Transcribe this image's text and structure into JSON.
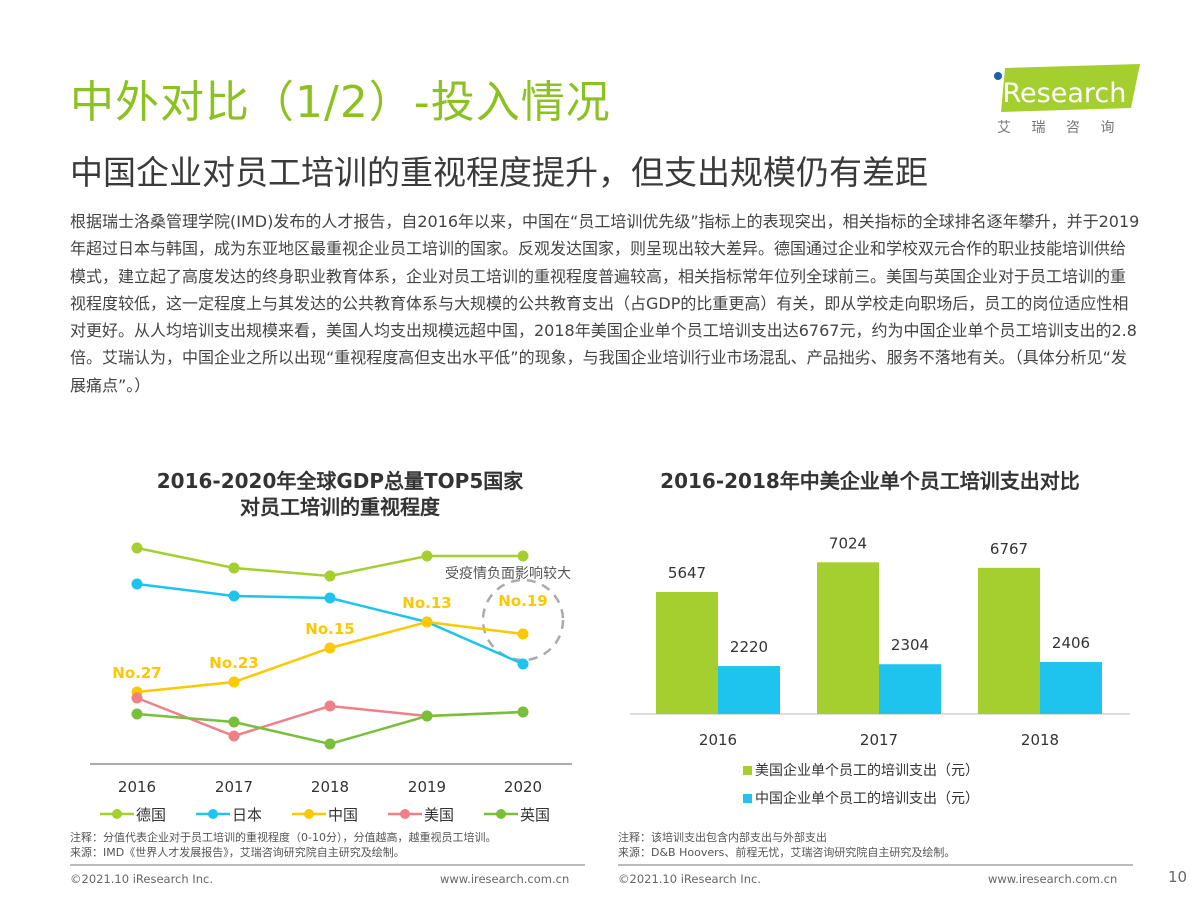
{
  "header": {
    "title": "中外对比（1/2）-投入情况",
    "subtitle": "中国企业对员工培训的重视程度提升，但支出规模仍有差距",
    "logo_text": "iResearch",
    "logo_cn": "艾 瑞 咨 询",
    "accent_color": "#8cc21f"
  },
  "paragraph": "根据瑞士洛桑管理学院(IMD)发布的人才报告，自2016年以来，中国在“员工培训优先级”指标上的表现突出，相关指标的全球排名逐年攀升，并于2019年超过日本与韩国，成为东亚地区最重视企业员工培训的国家。反观发达国家，则呈现出较大差异。德国通过企业和学校双元合作的职业技能培训供给模式，建立起了高度发达的终身职业教育体系，企业对员工培训的重视程度普遍较高，相关指标常年位列全球前三。美国与英国企业对于员工培训的重视程度较低，这一定程度上与其发达的公共教育体系与大规模的公共教育支出（占GDP的比重更高）有关，即从学校走向职场后，员工的岗位适应性相对更好。从人均培训支出规模来看，美国人均支出规模远超中国，2018年美国企业单个员工培训支出达6767元，约为中国企业单个员工培训支出的2.8倍。艾瑞认为，中国企业之所以出现“重视程度高但支出水平低”的现象，与我国企业培训行业市场混乱、产品拙劣、服务不落地有关。（具体分析见“发展痛点”。）",
  "chart_data": [
    {
      "type": "line",
      "title_line1": "2016-2020年全球GDP总量TOP5国家",
      "title_line2": "对员工培训的重视程度",
      "categories": [
        "2016",
        "2017",
        "2018",
        "2019",
        "2020"
      ],
      "ylim": [
        0,
        10
      ],
      "grid": false,
      "legend_placement": "bottom",
      "series": [
        {
          "name": "德国",
          "color": "#a5cf2e",
          "values": [
            6.3,
            5.8,
            5.6,
            6.1,
            6.1
          ]
        },
        {
          "name": "日本",
          "color": "#1ec4ee",
          "values": [
            5.4,
            5.1,
            5.05,
            4.45,
            3.4
          ]
        },
        {
          "name": "中国",
          "color": "#fcc800",
          "values": [
            2.7,
            2.95,
            3.8,
            4.45,
            4.15
          ],
          "labels": [
            "No.27",
            "No.23",
            "No.15",
            "No.13",
            "No.19"
          ]
        },
        {
          "name": "美国",
          "color": "#ee8088",
          "values": [
            2.55,
            1.6,
            2.35,
            2.1,
            2.2
          ]
        },
        {
          "name": "英国",
          "color": "#78c03a",
          "values": [
            2.15,
            1.95,
            1.4,
            2.1,
            2.2
          ]
        }
      ],
      "annotation": "受疫情负面影响较大",
      "note": "注释：分值代表企业对于员工培训的重视程度（0-10分），分值越高，越重视员工培训。",
      "source": "来源：IMD《世界人才发展报告》，艾瑞咨询研究院自主研究及绘制。"
    },
    {
      "type": "bar",
      "title": "2016-2018年中美企业单个员工培训支出对比",
      "categories": [
        "2016",
        "2017",
        "2018"
      ],
      "ylim": [
        0,
        8000
      ],
      "grid": false,
      "legend_placement": "bottom",
      "series": [
        {
          "name": "美国企业单个员工的培训支出（元）",
          "color": "#a5cf2e",
          "values": [
            5647,
            7024,
            6767
          ]
        },
        {
          "name": "中国企业单个员工的培训支出（元）",
          "color": "#1ec4ee",
          "values": [
            2220,
            2304,
            2406
          ]
        }
      ],
      "note": "注释：该培训支出包含内部支出与外部支出",
      "source": "来源：D&B Hoovers、前程无忧，艾瑞咨询研究院自主研究及绘制。"
    }
  ],
  "footer": {
    "copyright": "©2021.10 iResearch Inc.",
    "website": "www.iresearch.com.cn",
    "page_number": "10"
  }
}
